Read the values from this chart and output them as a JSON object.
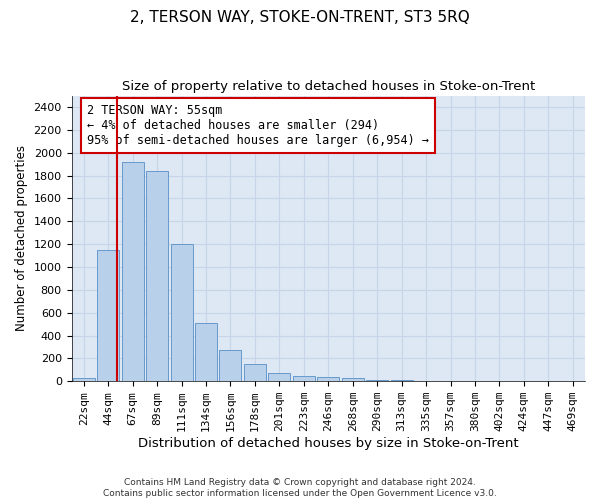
{
  "title": "2, TERSON WAY, STOKE-ON-TRENT, ST3 5RQ",
  "subtitle": "Size of property relative to detached houses in Stoke-on-Trent",
  "xlabel": "Distribution of detached houses by size in Stoke-on-Trent",
  "ylabel": "Number of detached properties",
  "bar_labels": [
    "22sqm",
    "44sqm",
    "67sqm",
    "89sqm",
    "111sqm",
    "134sqm",
    "156sqm",
    "178sqm",
    "201sqm",
    "223sqm",
    "246sqm",
    "268sqm",
    "290sqm",
    "313sqm",
    "335sqm",
    "357sqm",
    "380sqm",
    "402sqm",
    "424sqm",
    "447sqm",
    "469sqm"
  ],
  "bar_values": [
    30,
    1150,
    1920,
    1840,
    1200,
    510,
    270,
    150,
    75,
    45,
    38,
    32,
    15,
    10,
    5,
    5,
    5,
    4,
    4,
    4,
    4
  ],
  "bar_color": "#b8d0ea",
  "bar_edge_color": "#6699cc",
  "vline_x_index": 1.35,
  "vline_color": "#cc0000",
  "annotation_text": "2 TERSON WAY: 55sqm\n← 4% of detached houses are smaller (294)\n95% of semi-detached houses are larger (6,954) →",
  "annotation_box_color": "#ffffff",
  "annotation_box_edge": "#cc0000",
  "ylim": [
    0,
    2500
  ],
  "yticks": [
    0,
    200,
    400,
    600,
    800,
    1000,
    1200,
    1400,
    1600,
    1800,
    2000,
    2200,
    2400
  ],
  "grid_color": "#c8d4e8",
  "background_color": "#dde8f4",
  "footer": "Contains HM Land Registry data © Crown copyright and database right 2024.\nContains public sector information licensed under the Open Government Licence v3.0.",
  "title_fontsize": 11,
  "subtitle_fontsize": 9.5,
  "xlabel_fontsize": 9.5,
  "ylabel_fontsize": 8.5,
  "tick_fontsize": 8,
  "annotation_fontsize": 8.5,
  "footer_fontsize": 6.5
}
